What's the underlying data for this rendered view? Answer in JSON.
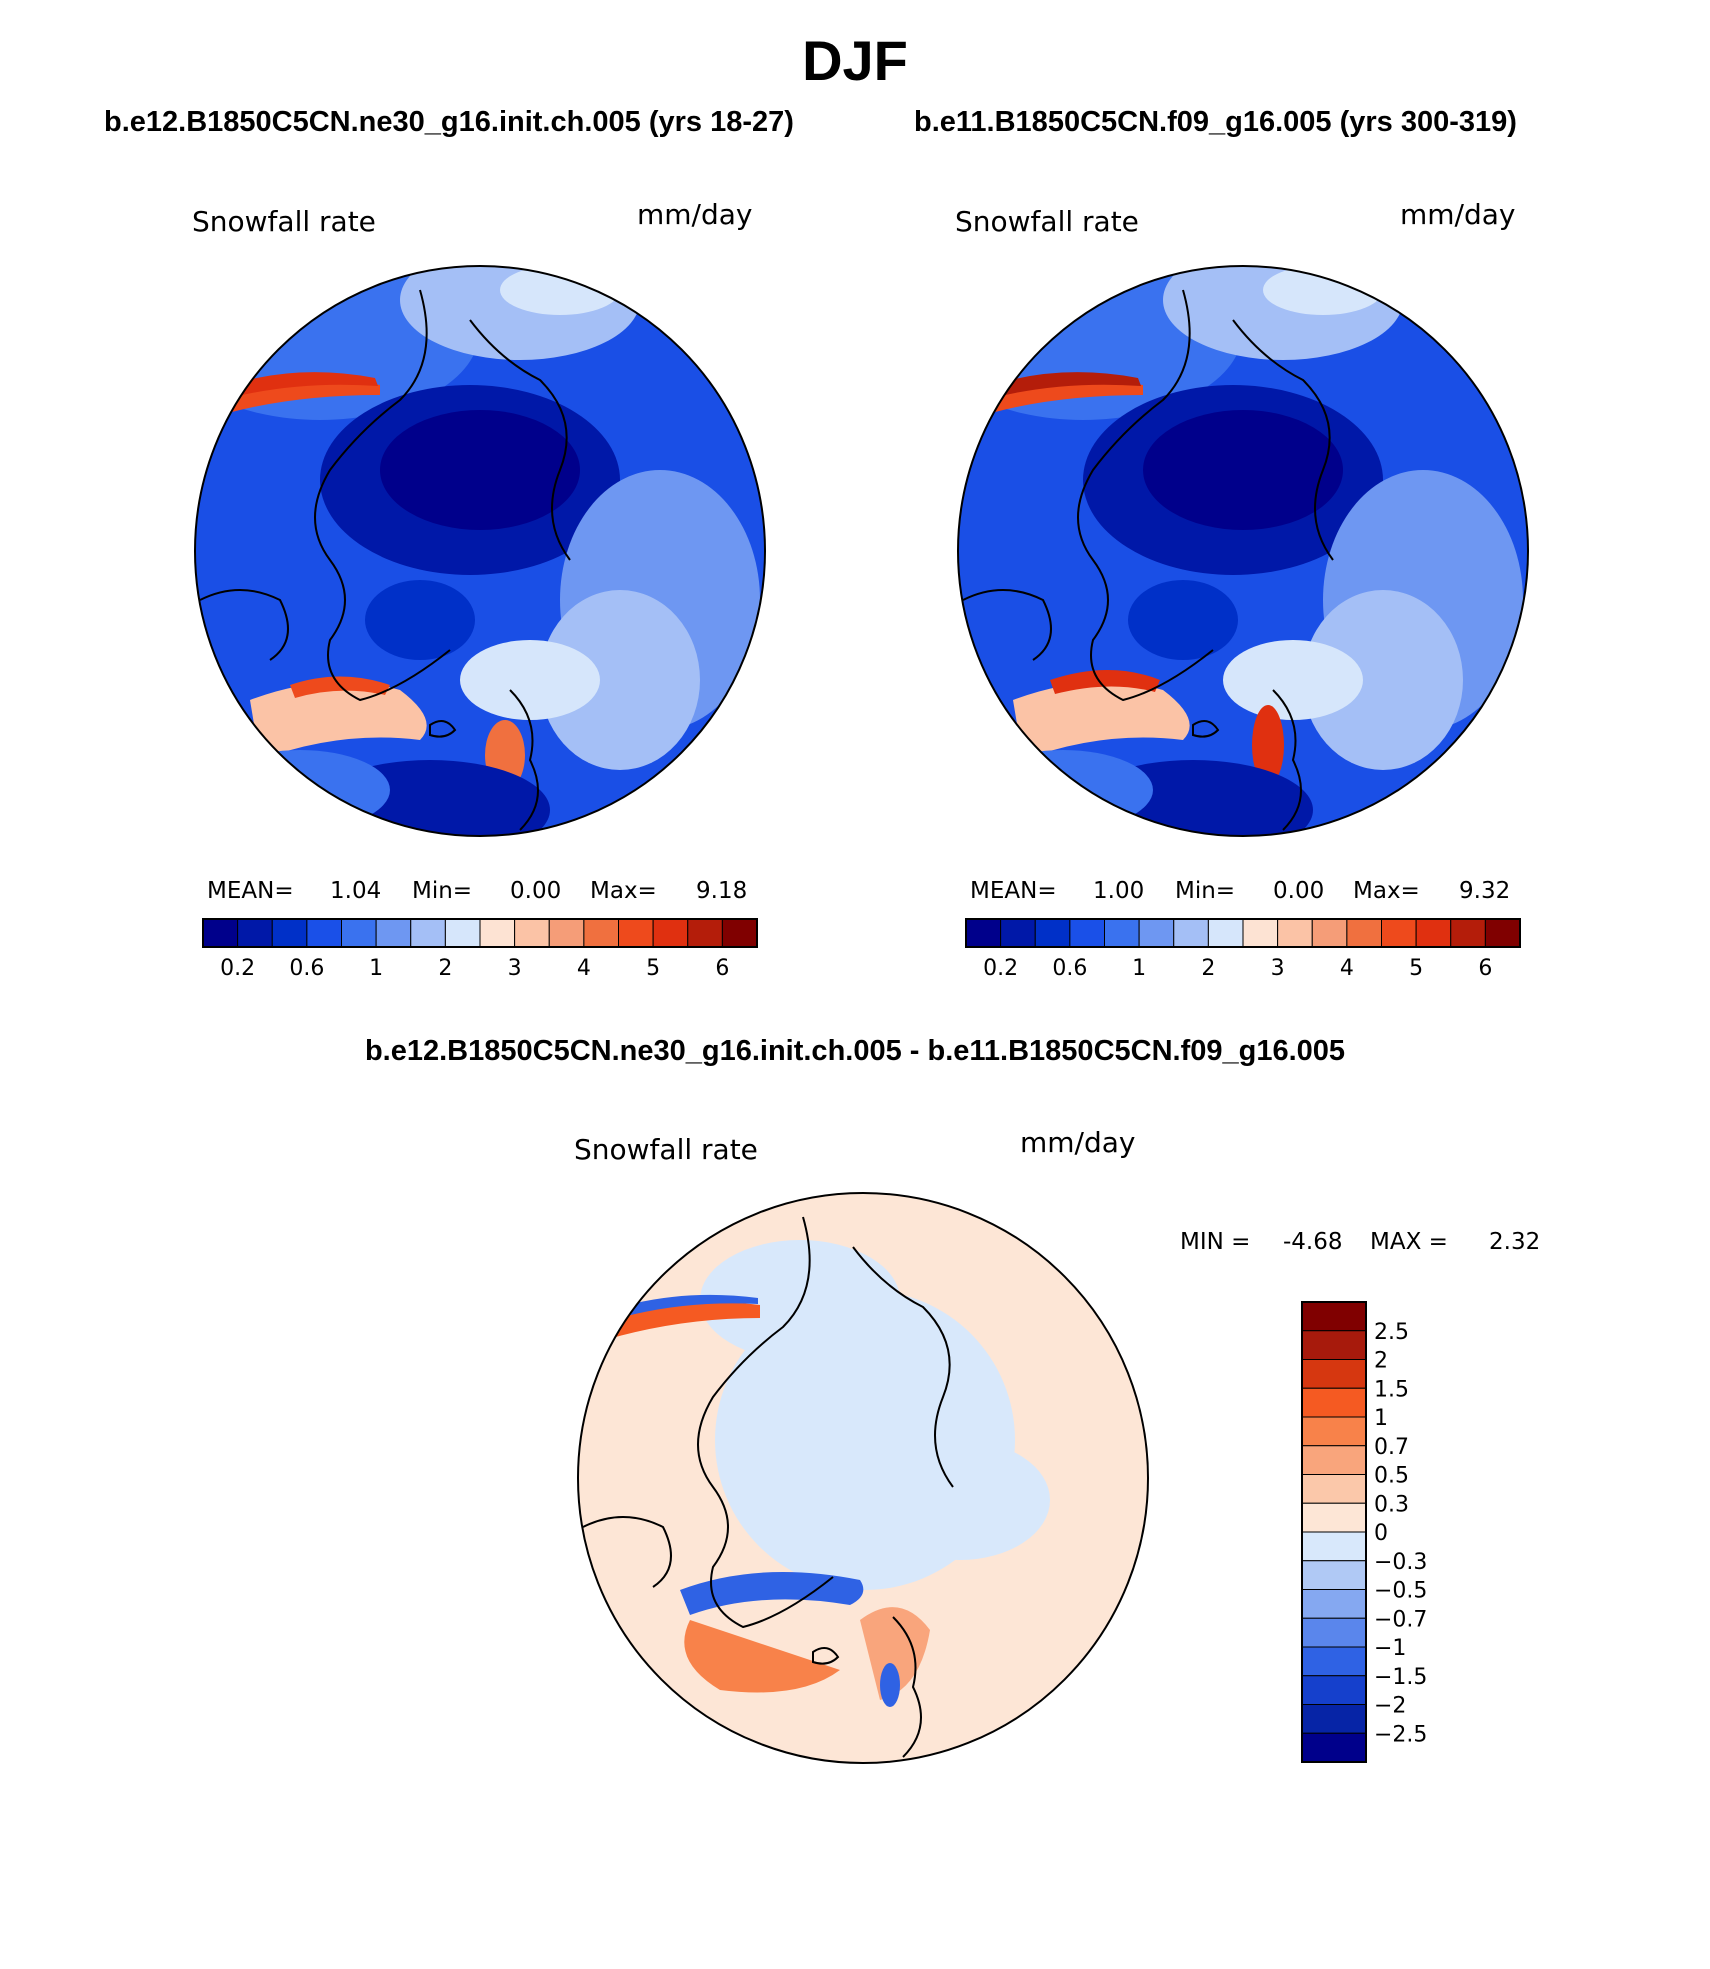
{
  "title": "DJF",
  "panels": [
    {
      "case": "b.e12.B1850C5CN.ne30_g16.init.ch.005 (yrs 18-27)",
      "variable": "Snowfall rate",
      "units": "mm/day",
      "stats": {
        "mean_label": "MEAN=",
        "mean": "1.04",
        "min_label": "Min=",
        "min": "0.00",
        "max_label": "Max=",
        "max": "9.18"
      }
    },
    {
      "case": "b.e11.B1850C5CN.f09_g16.005 (yrs 300-319)",
      "variable": "Snowfall rate",
      "units": "mm/day",
      "stats": {
        "mean_label": "MEAN=",
        "mean": "1.00",
        "min_label": "Min=",
        "min": "0.00",
        "max_label": "Max=",
        "max": "9.32"
      }
    }
  ],
  "difference": {
    "title": "b.e12.B1850C5CN.ne30_g16.init.ch.005 - b.e11.B1850C5CN.f09_g16.005",
    "variable": "Snowfall rate",
    "units": "mm/day",
    "min_label": "MIN =",
    "min": "-4.68",
    "max_label": "MAX =",
    "max": "2.32"
  },
  "colorbar_abs": {
    "colors": [
      "#00008b",
      "#0018a8",
      "#0030c8",
      "#1a50e8",
      "#3a72ef",
      "#6e97f2",
      "#a4bff6",
      "#d6e6fb",
      "#fde3d3",
      "#fbc3a6",
      "#f59d78",
      "#f0703f",
      "#ee4a1c",
      "#e03010",
      "#b41d0a",
      "#800000"
    ],
    "labels": [
      "0.2",
      "0.6",
      "1",
      "2",
      "3",
      "4",
      "5",
      "6"
    ]
  },
  "colorbar_diff": {
    "colors": [
      "#800000",
      "#a71a0c",
      "#d63710",
      "#f55a22",
      "#f8824a",
      "#f9a57c",
      "#fbc8aa",
      "#fde6d6",
      "#d8e8fb",
      "#b0c9f5",
      "#85a8f1",
      "#5a86ec",
      "#2f62e4",
      "#1540cc",
      "#0624a6",
      "#00008b"
    ],
    "labels": [
      "2.5",
      "2",
      "1.5",
      "1",
      "0.7",
      "0.5",
      "0.3",
      "0",
      "−0.3",
      "−0.5",
      "−0.7",
      "−1",
      "−1.5",
      "−2",
      "−2.5"
    ]
  },
  "map_colors": {
    "deep": "#00008b",
    "mid": "#1a4fe6",
    "light": "#6e97f2",
    "pale": "#d6e6fb",
    "warm": "#fbc3a6",
    "hot": "#ee4a1c",
    "diff_bg": "#fde6d6",
    "diff_cool": "#d8e8fb"
  }
}
